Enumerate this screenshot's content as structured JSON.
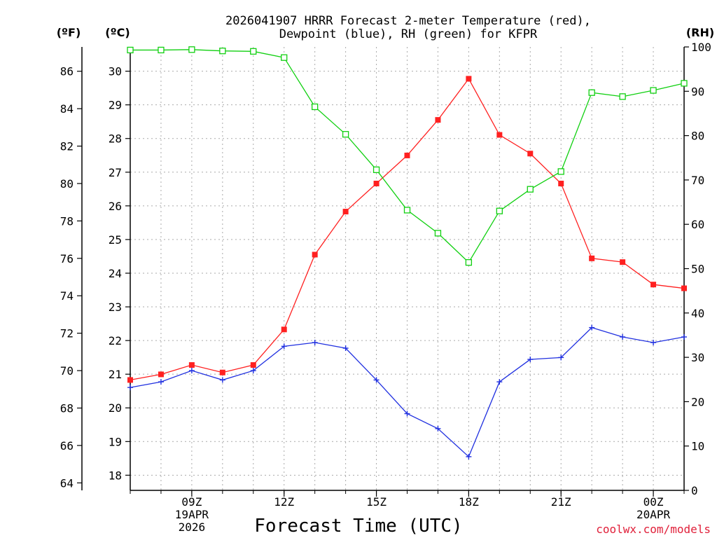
{
  "chart_data": {
    "type": "line",
    "title_line1": "2026041907 HRRR Forecast 2-meter Temperature (red),",
    "title_line2": "Dewpoint (blue), RH (green) for KFPR",
    "xlabel": "Forecast Time (UTC)",
    "credit": "coolwx.com/models",
    "unit_f": "(ºF)",
    "unit_c": "(ºC)",
    "unit_rh": "(RH)",
    "x_hours": [
      7,
      8,
      9,
      10,
      11,
      12,
      13,
      14,
      15,
      16,
      17,
      18,
      19,
      20,
      21,
      22,
      23,
      24,
      25
    ],
    "xlim": [
      7,
      25
    ],
    "x_ticks": [
      {
        "hour": 9,
        "lines": [
          "09Z",
          "19APR",
          "2026"
        ]
      },
      {
        "hour": 12,
        "lines": [
          "12Z"
        ]
      },
      {
        "hour": 15,
        "lines": [
          "15Z"
        ]
      },
      {
        "hour": 18,
        "lines": [
          "18Z"
        ]
      },
      {
        "hour": 21,
        "lines": [
          "21Z"
        ]
      },
      {
        "hour": 24,
        "lines": [
          "00Z",
          "20APR"
        ]
      }
    ],
    "f_axis": {
      "lim": [
        63.6,
        87.3
      ],
      "ticks": [
        "64",
        "66",
        "68",
        "70",
        "72",
        "74",
        "76",
        "78",
        "80",
        "82",
        "84",
        "86"
      ]
    },
    "c_axis": {
      "lim": [
        17.55,
        30.72
      ],
      "ticks": [
        "18",
        "19",
        "20",
        "21",
        "22",
        "23",
        "24",
        "25",
        "26",
        "27",
        "28",
        "29",
        "30"
      ]
    },
    "rh_axis": {
      "lim": [
        0,
        100
      ],
      "ticks": [
        "0",
        "10",
        "20",
        "30",
        "40",
        "50",
        "60",
        "70",
        "80",
        "90",
        "100"
      ]
    },
    "series": [
      {
        "name": "2-meter Temperature",
        "units": "ºF",
        "color": "#ff2020",
        "marker": "filled-square",
        "values": [
          69.5,
          69.8,
          70.3,
          69.9,
          70.3,
          72.2,
          76.2,
          78.5,
          80.0,
          81.5,
          83.4,
          85.6,
          82.6,
          81.6,
          80.0,
          76.0,
          75.8,
          74.6,
          74.4
        ]
      },
      {
        "name": "Dewpoint",
        "units": "ºF",
        "color": "#2030e0",
        "marker": "plus",
        "values": [
          69.1,
          69.4,
          70.0,
          69.5,
          70.0,
          71.3,
          71.5,
          71.2,
          69.5,
          67.7,
          66.9,
          65.4,
          69.4,
          70.6,
          70.7,
          72.3,
          71.8,
          71.5,
          71.8
        ]
      },
      {
        "name": "RH",
        "units": "%",
        "color": "#10d010",
        "marker": "open-square",
        "values": [
          99.3,
          99.3,
          99.4,
          99.1,
          99.0,
          97.6,
          86.5,
          80.3,
          72.3,
          63.2,
          58.0,
          51.4,
          63.0,
          67.9,
          71.9,
          89.7,
          88.8,
          90.2,
          91.8
        ]
      }
    ]
  }
}
